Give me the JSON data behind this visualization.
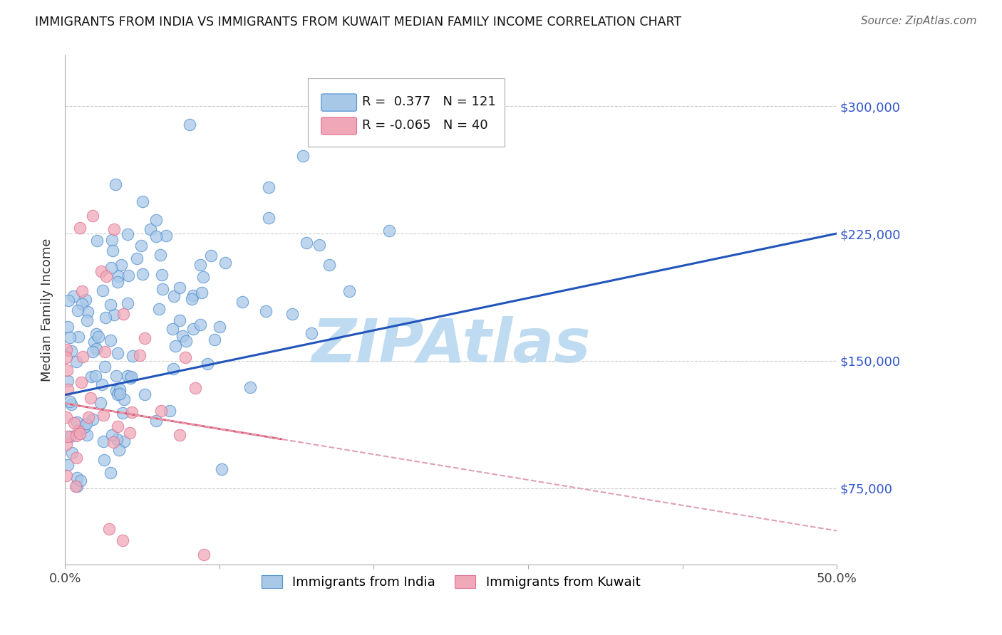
{
  "title": "IMMIGRANTS FROM INDIA VS IMMIGRANTS FROM KUWAIT MEDIAN FAMILY INCOME CORRELATION CHART",
  "source": "Source: ZipAtlas.com",
  "ylabel": "Median Family Income",
  "xlim": [
    0.0,
    0.5
  ],
  "ylim": [
    30000,
    330000
  ],
  "xticks": [
    0.0,
    0.1,
    0.2,
    0.3,
    0.4,
    0.5
  ],
  "xticklabels": [
    "0.0%",
    "",
    "",
    "",
    "",
    "50.0%"
  ],
  "ytick_values": [
    75000,
    150000,
    225000,
    300000
  ],
  "ytick_labels": [
    "$75,000",
    "$150,000",
    "$225,000",
    "$300,000"
  ],
  "india_color": "#a8c8e8",
  "kuwait_color": "#f0a8b8",
  "india_edge_color": "#5090d0",
  "kuwait_edge_color": "#e07090",
  "india_line_color": "#2255bb",
  "kuwait_solid_color": "#e05575",
  "kuwait_dash_color": "#e0a0b0",
  "india_R": 0.377,
  "india_N": 121,
  "kuwait_R": -0.065,
  "kuwait_N": 40,
  "watermark": "ZIPAtlas",
  "watermark_color": "#b8d8f0",
  "background_color": "#ffffff",
  "india_seed": 7,
  "kuwait_seed": 13,
  "grid_color": "#cccccc"
}
